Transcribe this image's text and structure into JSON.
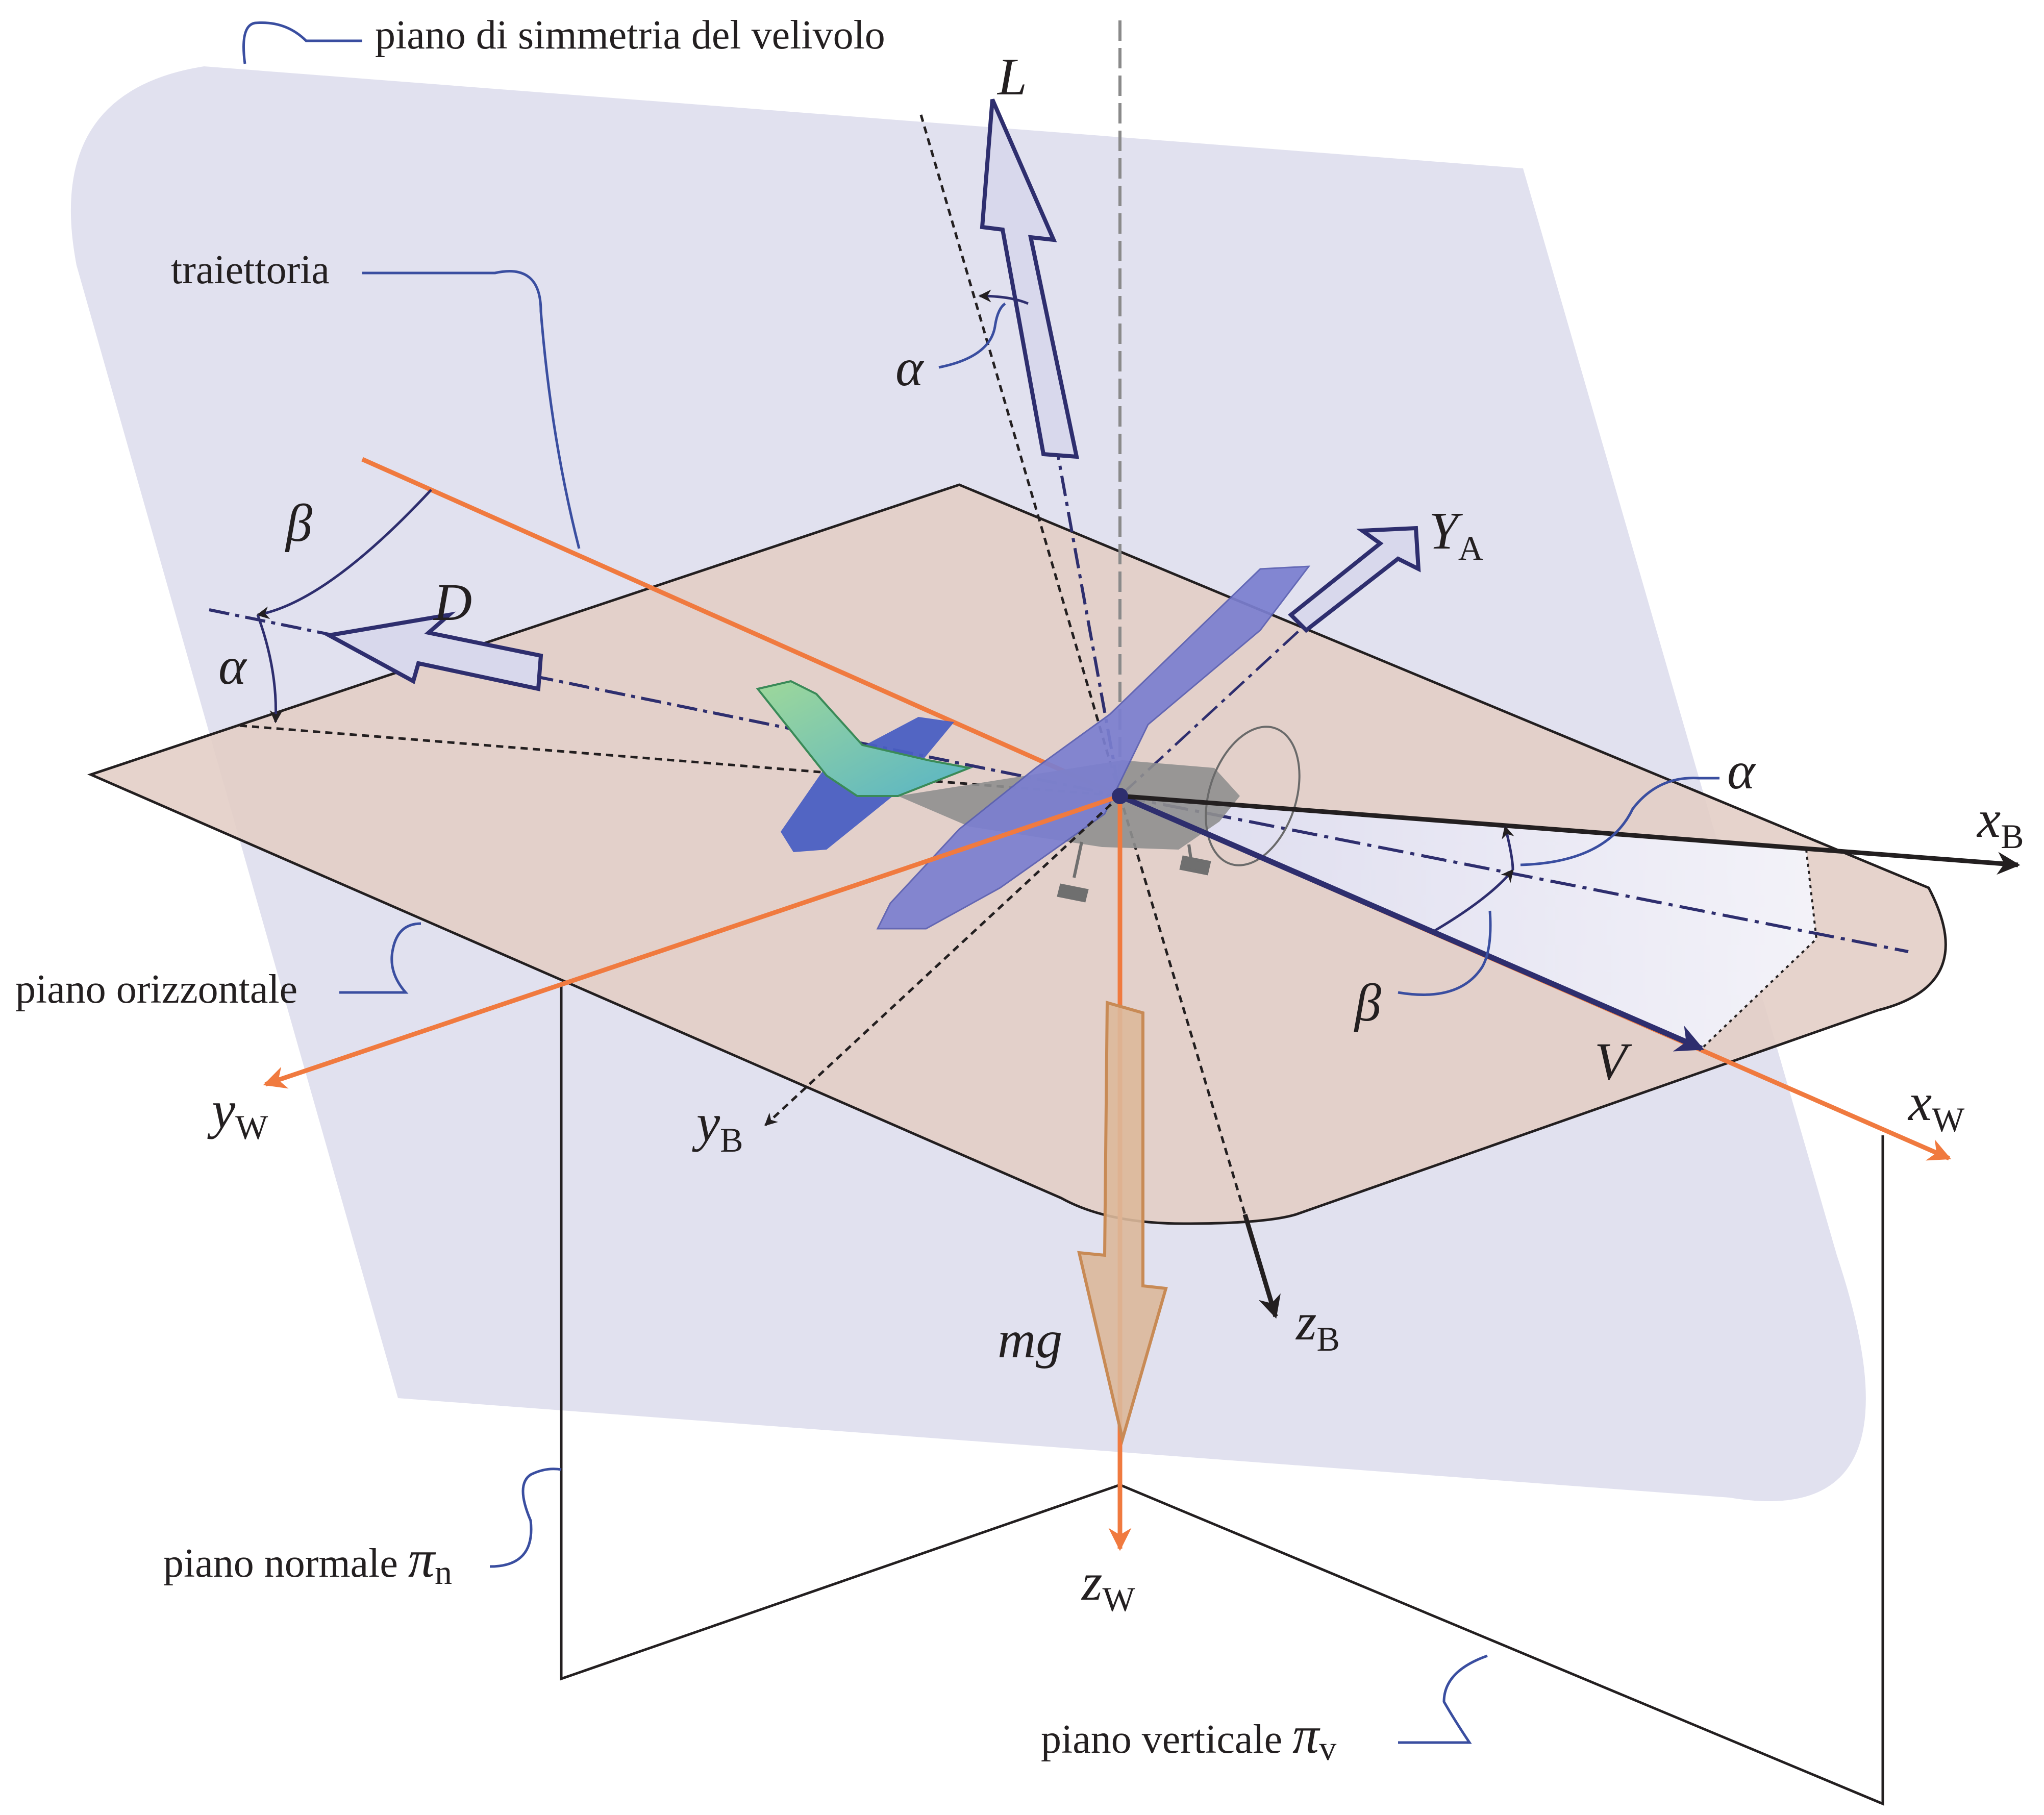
{
  "labels": {
    "symmetry_plane": "piano di simmetria del velivolo",
    "trajectory": "traiettoria",
    "horizontal_plane": "piano orizzontale",
    "normal_plane": "piano normale ",
    "normal_plane_symbol": "π",
    "normal_plane_sub": "n",
    "vertical_plane": "piano verticale ",
    "vertical_plane_symbol": "π",
    "vertical_plane_sub": "v"
  },
  "symbols": {
    "lift": "L",
    "drag": "D",
    "side_force": "Y",
    "side_force_sub": "A",
    "velocity": "V",
    "weight": "mg",
    "alpha": "α",
    "beta": "β"
  },
  "axes": {
    "x_body": "x",
    "x_body_sub": "B",
    "y_body": "y",
    "y_body_sub": "B",
    "z_body": "z",
    "z_body_sub": "B",
    "x_wind": "x",
    "x_wind_sub": "W",
    "y_wind": "y",
    "y_wind_sub": "W",
    "z_wind": "z",
    "z_wind_sub": "W"
  },
  "colors": {
    "symmetry_plane_fill": "#e1e1ef",
    "horizontal_plane_fill": "#e2cdc5",
    "wind_axes": "#f07a3f",
    "body_axes": "#231f20",
    "force_arrow_stroke": "#2e2e6e",
    "force_arrow_fill": "#d8d8ec",
    "weight_arrow_fill": "#dcb89a",
    "weight_arrow_stroke": "#c88a55",
    "leader_lines": "#3a4ea0",
    "aircraft_wing": "#7b7fd0",
    "aircraft_body": "#8f8f8f"
  }
}
